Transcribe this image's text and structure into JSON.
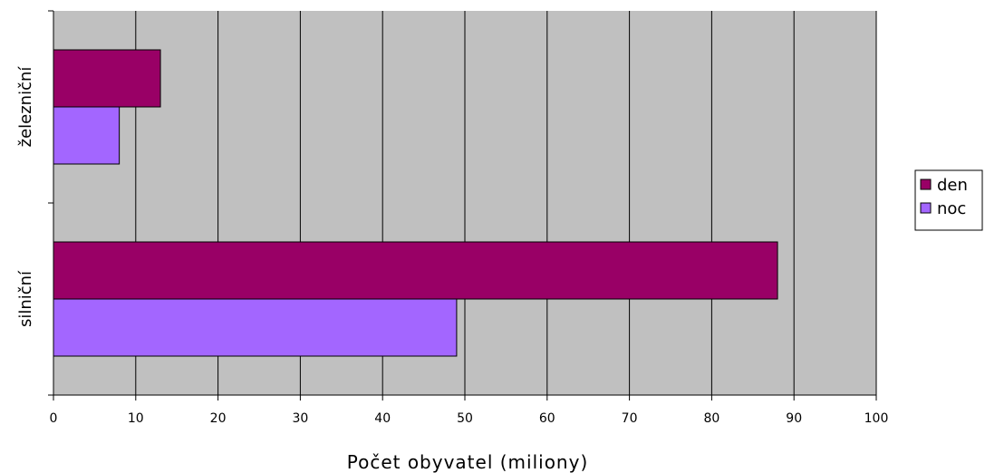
{
  "chart_data": {
    "type": "bar",
    "orientation": "horizontal",
    "categories": [
      "železniční",
      "silniční"
    ],
    "series": [
      {
        "name": "den",
        "values": [
          13,
          88
        ],
        "color": "#990066"
      },
      {
        "name": "noc",
        "values": [
          8,
          49
        ],
        "color": "#a366ff"
      }
    ],
    "xlabel": "Počet obyvatel (miliony)",
    "ylabel": "",
    "xlim": [
      0,
      100
    ],
    "xticks": [
      0,
      10,
      20,
      30,
      40,
      50,
      60,
      70,
      80,
      90,
      100
    ],
    "grid": "vertical",
    "plot_background": "#c0c0c0",
    "legend_position": "right"
  }
}
